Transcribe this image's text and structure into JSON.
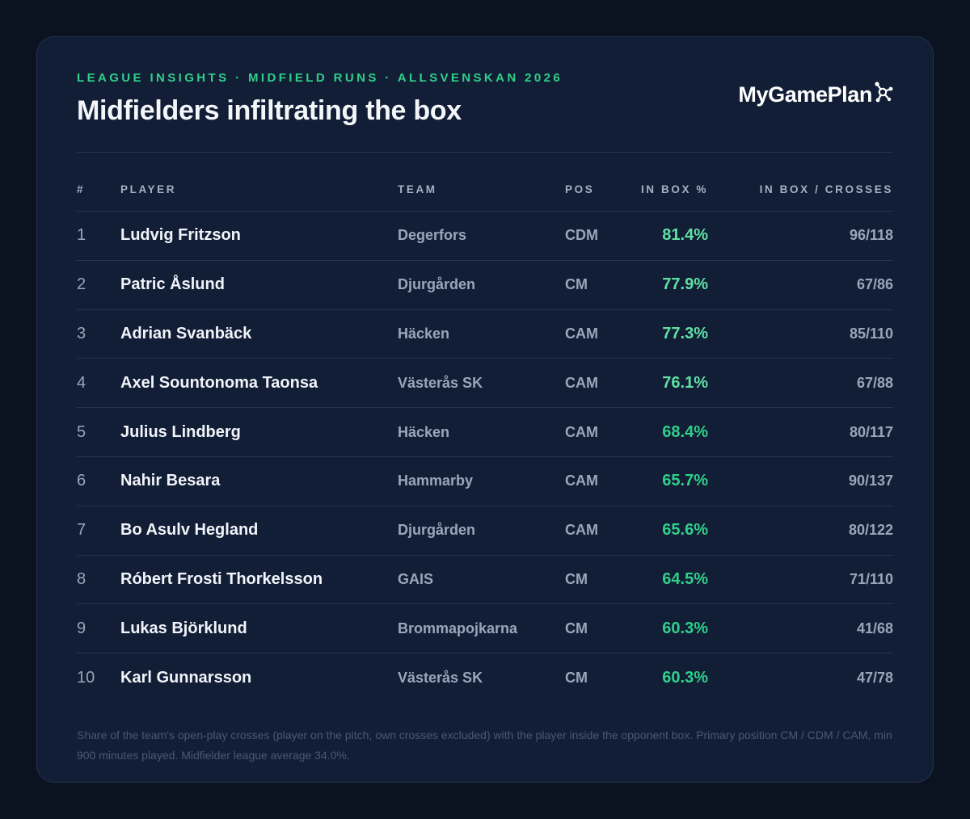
{
  "header": {
    "eyebrow": "LEAGUE INSIGHTS · MIDFIELD RUNS · ALLSVENSKAN 2026",
    "title": "Midfielders infiltrating the box",
    "logo_text": "MyGamePlan"
  },
  "colors": {
    "accent_green": "#2fd08a",
    "accent_green_light": "#5fe0a4",
    "card_bg": "#121e36",
    "page_bg": "#0b1321"
  },
  "table": {
    "columns": {
      "rank": "#",
      "player": "PLAYER",
      "team": "TEAM",
      "pos": "POS",
      "pct": "IN BOX %",
      "ratio": "IN BOX / CROSSES"
    },
    "rows": [
      {
        "rank": "1",
        "player": "Ludvig Fritzson",
        "team": "Degerfors",
        "pos": "CDM",
        "pct": "81.4%",
        "ratio": "96/118"
      },
      {
        "rank": "2",
        "player": "Patric Åslund",
        "team": "Djurgården",
        "pos": "CM",
        "pct": "77.9%",
        "ratio": "67/86"
      },
      {
        "rank": "3",
        "player": "Adrian Svanbäck",
        "team": "Häcken",
        "pos": "CAM",
        "pct": "77.3%",
        "ratio": "85/110"
      },
      {
        "rank": "4",
        "player": "Axel Sountonoma Taonsa",
        "team": "Västerås SK",
        "pos": "CAM",
        "pct": "76.1%",
        "ratio": "67/88"
      },
      {
        "rank": "5",
        "player": "Julius Lindberg",
        "team": "Häcken",
        "pos": "CAM",
        "pct": "68.4%",
        "ratio": "80/117"
      },
      {
        "rank": "6",
        "player": "Nahir Besara",
        "team": "Hammarby",
        "pos": "CAM",
        "pct": "65.7%",
        "ratio": "90/137"
      },
      {
        "rank": "7",
        "player": "Bo Asulv Hegland",
        "team": "Djurgården",
        "pos": "CAM",
        "pct": "65.6%",
        "ratio": "80/122"
      },
      {
        "rank": "8",
        "player": "Róbert Frosti Thorkelsson",
        "team": "GAIS",
        "pos": "CM",
        "pct": "64.5%",
        "ratio": "71/110"
      },
      {
        "rank": "9",
        "player": "Lukas Björklund",
        "team": "Brommapojkarna",
        "pos": "CM",
        "pct": "60.3%",
        "ratio": "41/68"
      },
      {
        "rank": "10",
        "player": "Karl Gunnarsson",
        "team": "Västerås SK",
        "pos": "CM",
        "pct": "60.3%",
        "ratio": "47/78"
      }
    ]
  },
  "footnote": "Share of the team's open-play crosses (player on the pitch, own crosses excluded) with the player inside the opponent box. Primary position CM / CDM / CAM, min 900 minutes played. Midfielder league average 34.0%."
}
